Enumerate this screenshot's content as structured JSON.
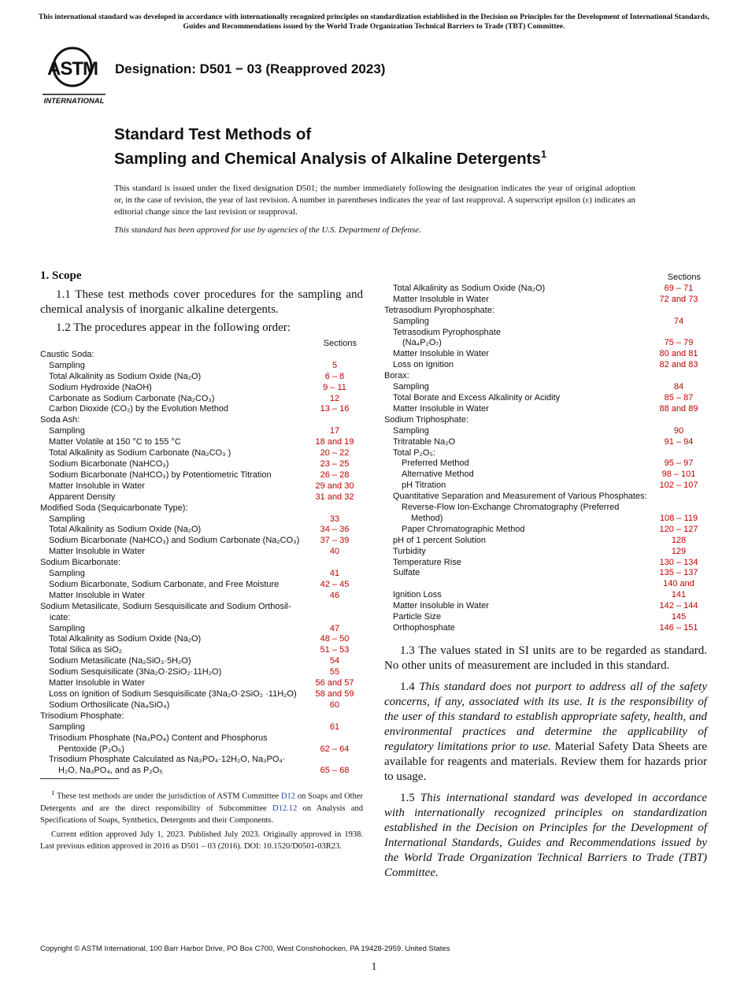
{
  "notice": "This international standard was developed in accordance with internationally recognized principles on standardization established in the Decision on Principles for the Development of International Standards, Guides and Recommendations issued by the World Trade Organization Technical Barriers to Trade (TBT) Committee.",
  "logo": {
    "text": "ASTM",
    "subtext": "INTERNATIONAL"
  },
  "designation": "Designation: D501 − 03 (Reapproved 2023)",
  "title": {
    "line1": "Standard Test Methods of",
    "line2": "Sampling and Chemical Analysis of Alkaline Detergents",
    "footnote_mark": "1"
  },
  "intro": "This standard is issued under the fixed designation D501; the number immediately following the designation indicates the year of original adoption or, in the case of revision, the year of last revision. A number in parentheses indicates the year of last reapproval. A superscript epsilon (ε) indicates an editorial change since the last revision or reapproval.",
  "approved": "This standard has been approved for use by agencies of the U.S. Department of Defense.",
  "scope": {
    "heading": "1.  Scope",
    "p1_1": "1.1 These test methods cover procedures for the sampling and chemical analysis of inorganic alkaline detergents.",
    "p1_2": "1.2 The procedures appear in the following order:",
    "p1_3": "1.3 The values stated in SI units are to be regarded as standard. No other units of measurement are included in this standard.",
    "p1_4_num": "1.4 ",
    "p1_4_italic": "This standard does not purport to address all of the safety concerns, if any, associated with its use. It is the responsibility of the user of this standard to establish appropriate safety, health, and environmental practices and determine the applicability of regulatory limitations prior to use.",
    "p1_4_rest": " Material Safety Data Sheets are available for reagents and materials. Review them for hazards prior to usage.",
    "p1_5_num": "1.5 ",
    "p1_5_italic": "This international standard was developed in accordance with internationally recognized principles on standardization established in the Decision on Principles for the Development of International Standards, Guides and Recommendations issued by the World Trade Organization Technical Barriers to Trade (TBT) Committee."
  },
  "sections_header": "Sections",
  "table_left": [
    {
      "label": "Caustic Soda:",
      "sections": "",
      "indent": 0
    },
    {
      "label": "Sampling",
      "sections": "5",
      "indent": 1
    },
    {
      "label": "Total Alkalinity as Sodium Oxide (Na₂O)",
      "sections": "6 – 8",
      "indent": 1
    },
    {
      "label": "Sodium Hydroxide (NaOH)",
      "sections": "9 – 11",
      "indent": 1
    },
    {
      "label": "Carbonate as Sodium Carbonate (Na₂CO₃)",
      "sections": "12",
      "indent": 1
    },
    {
      "label": "Carbon Dioxide (CO₂) by the Evolution Method",
      "sections": "13 – 16",
      "indent": 1
    },
    {
      "label": "Soda Ash:",
      "sections": "",
      "indent": 0
    },
    {
      "label": "Sampling",
      "sections": "17",
      "indent": 1
    },
    {
      "label": "Matter Volatile at 150 °C to 155 °C",
      "sections": "18 and 19",
      "indent": 1
    },
    {
      "label": "Total Alkalinity as Sodium Carbonate (Na₂CO₃ )",
      "sections": "20 – 22",
      "indent": 1
    },
    {
      "label": "Sodium Bicarbonate (NaHCO₃)",
      "sections": "23 – 25",
      "indent": 1
    },
    {
      "label": "Sodium Bicarbonate (NaHCO₃) by Potentiometric Titration",
      "sections": "26 – 28",
      "indent": 1
    },
    {
      "label": "Matter Insoluble in Water",
      "sections": "29 and 30",
      "indent": 1
    },
    {
      "label": "Apparent Density",
      "sections": "31 and 32",
      "indent": 1
    },
    {
      "label": "Modified Soda (Sequicarbonate Type):",
      "sections": "",
      "indent": 0
    },
    {
      "label": "Sampling",
      "sections": "33",
      "indent": 1
    },
    {
      "label": "Total Alkalinity as Sodium Oxide (Na₂O)",
      "sections": "34 – 36",
      "indent": 1
    },
    {
      "label": "Sodium Bicarbonate (NaHCO₃) and Sodium Carbonate (Na₂CO₃)",
      "sections": "37 – 39",
      "indent": 1
    },
    {
      "label": "Matter Insoluble in Water",
      "sections": "40",
      "indent": 1
    },
    {
      "label": "Sodium Bicarbonate:",
      "sections": "",
      "indent": 0
    },
    {
      "label": "Sampling",
      "sections": "41",
      "indent": 1
    },
    {
      "label": "Sodium Bicarbonate, Sodium Carbonate, and Free Moisture",
      "sections": "42 – 45",
      "indent": 1
    },
    {
      "label": "Matter Insoluble in Water",
      "sections": "46",
      "indent": 1
    },
    {
      "label": "Sodium Metasilicate, Sodium Sesquisilicate and Sodium Orthosil-\nicate:",
      "sections": "",
      "indent": 0
    },
    {
      "label": "Sampling",
      "sections": "47",
      "indent": 1
    },
    {
      "label": "Total Alkalinity as Sodium Oxide (Na₂O)",
      "sections": "48 – 50",
      "indent": 1
    },
    {
      "label": "Total Silica as SiO₂",
      "sections": "51 – 53",
      "indent": 1
    },
    {
      "label": "Sodium Metasilicate (Na₂SiO₃·5H₂O)",
      "sections": "54",
      "indent": 1
    },
    {
      "label": "Sodium Sesquisilicate (3Na₂O·2SiO₂·11H₂O)",
      "sections": "55",
      "indent": 1
    },
    {
      "label": "Matter Insoluble in Water",
      "sections": "56 and 57",
      "indent": 1
    },
    {
      "label": "Loss on Ignition of Sodium Sesquisilicate (3Na₂O·2SiO₂ ·11H₂O)",
      "sections": "58 and 59",
      "indent": 1
    },
    {
      "label": "Sodium Orthosilicate (Na₄SiO₄)",
      "sections": "60",
      "indent": 1
    },
    {
      "label": "Trisodium Phosphate:",
      "sections": "",
      "indent": 0
    },
    {
      "label": "Sampling",
      "sections": "61",
      "indent": 1
    },
    {
      "label": "Trisodium Phosphate (Na₃PO₄) Content and Phosphorus\nPentoxide (P₂O₅)",
      "sections": "62 – 64",
      "indent": 1
    },
    {
      "label": "Trisodium Phosphate Calculated as Na₃PO₄·12H₂O, Na₃PO₄·\nH₂O, Na₃PO₄, and as P₂O₅",
      "sections": "65 – 68",
      "indent": 1
    }
  ],
  "table_right": [
    {
      "label": "Total Alkalinity as Sodium Oxide (Na₂O)",
      "sections": "69 – 71",
      "indent": 1
    },
    {
      "label": "Matter Insoluble in Water",
      "sections": "72 and 73",
      "indent": 1
    },
    {
      "label": "Tetrasodium Pyrophosphate:",
      "sections": "",
      "indent": 0
    },
    {
      "label": "Sampling",
      "sections": "74",
      "indent": 1
    },
    {
      "label": "Tetrasodium Pyrophosphate\n(Na₄P₂O₇)",
      "sections": "75 – 79",
      "indent": 1
    },
    {
      "label": "Matter Insoluble in Water",
      "sections": "80 and 81",
      "indent": 1
    },
    {
      "label": "Loss on Ignition",
      "sections": "82 and 83",
      "indent": 1
    },
    {
      "label": "Borax:",
      "sections": "",
      "indent": 0
    },
    {
      "label": "Sampling",
      "sections": "84",
      "indent": 1
    },
    {
      "label": "Total Borate and Excess Alkalinity or Acidity",
      "sections": "85 – 87",
      "indent": 1
    },
    {
      "label": "Matter Insoluble in Water",
      "sections": "88 and 89",
      "indent": 1
    },
    {
      "label": "Sodium Triphosphate:",
      "sections": "",
      "indent": 0
    },
    {
      "label": "Sampling",
      "sections": "90",
      "indent": 1
    },
    {
      "label": "Tritratable Na₂O",
      "sections": "91 – 94",
      "indent": 1
    },
    {
      "label": "Total P₂O₅:",
      "sections": "",
      "indent": 1
    },
    {
      "label": "Preferred Method",
      "sections": "95 – 97",
      "indent": 2
    },
    {
      "label": "Alternative Method",
      "sections": "98 – 101",
      "indent": 2
    },
    {
      "label": "pH Titration",
      "sections": "102 – 107",
      "indent": 2
    },
    {
      "label": "Quantitative Separation and Measurement of Various Phosphates:",
      "sections": "",
      "indent": 1
    },
    {
      "label": "Reverse-Flow Ion-Exchange Chromatography (Preferred\nMethod)",
      "sections": "108 – 119",
      "indent": 2
    },
    {
      "label": "Paper Chromatographic Method",
      "sections": "120 – 127",
      "indent": 2
    },
    {
      "label": "pH of 1 percent Solution",
      "sections": "128",
      "indent": 1
    },
    {
      "label": "Turbidity",
      "sections": "129",
      "indent": 1
    },
    {
      "label": "Temperature Rise",
      "sections": "130 – 134",
      "indent": 1
    },
    {
      "label": "Sulfate",
      "sections": "135 – 137",
      "indent": 1
    },
    {
      "label": "Ignition Loss",
      "sections": "140 and\n141",
      "indent": 1
    },
    {
      "label": "Matter Insoluble in Water",
      "sections": "142 – 144",
      "indent": 1
    },
    {
      "label": "Particle Size",
      "sections": "145",
      "indent": 1
    },
    {
      "label": "Orthophosphate",
      "sections": "146 – 151",
      "indent": 1
    }
  ],
  "footnote": {
    "mark": "1",
    "t1": " These test methods are under the jurisdiction of ASTM Committee ",
    "link1": "D12",
    "t2": " on Soaps and Other Detergents and are the direct responsibility of Subcommittee ",
    "link2": "D12.12",
    "t3": " on Analysis and Specifications of Soaps, Synthetics, Detergents and their Components.",
    "p2": "Current edition approved July 1, 2023. Published July 2023. Originally approved in 1938. Last previous edition approved in 2016 as D501 – 03 (2016). DOI: 10.1520/D0501-03R23."
  },
  "copyright": "Copyright © ASTM International, 100 Barr Harbor Drive, PO Box C700, West Conshohocken, PA 19428-2959. United States",
  "page_number": "1",
  "colors": {
    "section_ref": "#c00000",
    "link": "#1f3fa0"
  }
}
